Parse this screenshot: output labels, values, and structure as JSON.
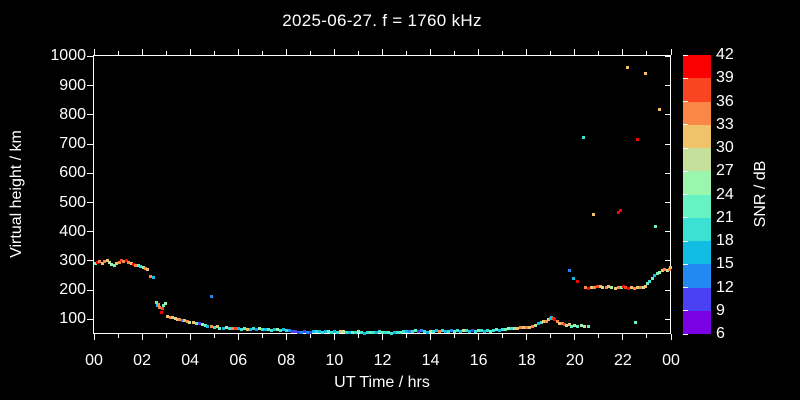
{
  "title": "2025-06-27. f = 1760 kHz",
  "colors": {
    "background": "#000000",
    "foreground": "#ffffff"
  },
  "chart_data": {
    "type": "scatter",
    "title": "2025-06-27. f = 1760 kHz",
    "xlabel": "UT Time / hrs",
    "ylabel": "Virtual height / km",
    "xlim": [
      0,
      24
    ],
    "ylim": [
      50,
      1005
    ],
    "x_major_ticks": [
      0,
      2,
      4,
      6,
      8,
      10,
      12,
      14,
      16,
      18,
      20,
      22,
      24
    ],
    "x_major_labels": [
      "00",
      "02",
      "04",
      "06",
      "08",
      "10",
      "12",
      "14",
      "16",
      "18",
      "20",
      "22",
      "00"
    ],
    "x_minor_step": 1,
    "y_ticks": [
      100,
      200,
      300,
      400,
      500,
      600,
      700,
      800,
      900,
      1000
    ],
    "grid": "off",
    "colorbar": {
      "label": "SNR / dB",
      "min": 6,
      "max": 42,
      "step": 3,
      "tick_labels_top_to_bottom": [
        "42",
        "39",
        "36",
        "33",
        "30",
        "27",
        "24",
        "21",
        "18",
        "15",
        "12",
        "9",
        "6"
      ],
      "colors_bottom_to_top": [
        "#7b00e3",
        "#4c41f2",
        "#2389f2",
        "#12bde3",
        "#3be2d3",
        "#66f2c3",
        "#9af6ac",
        "#c4e09a",
        "#f0c36b",
        "#fa8745",
        "#fa4523",
        "#fa0000"
      ]
    },
    "points_format": [
      "time_hrs",
      "virtual_height_km",
      "snr_db"
    ],
    "points": [
      [
        0.05,
        293,
        22
      ],
      [
        0.12,
        296,
        40
      ],
      [
        0.22,
        299,
        34
      ],
      [
        0.32,
        294,
        31
      ],
      [
        0.42,
        300,
        34
      ],
      [
        0.52,
        303,
        31
      ],
      [
        0.62,
        296,
        28
      ],
      [
        0.72,
        291,
        25
      ],
      [
        0.82,
        287,
        22
      ],
      [
        0.92,
        292,
        31
      ],
      [
        1.02,
        298,
        34
      ],
      [
        1.12,
        302,
        37
      ],
      [
        1.22,
        300,
        34
      ],
      [
        1.32,
        304,
        40
      ],
      [
        1.42,
        298,
        34
      ],
      [
        1.52,
        292,
        31
      ],
      [
        1.62,
        288,
        40
      ],
      [
        1.72,
        285,
        34
      ],
      [
        1.82,
        287,
        22
      ],
      [
        1.92,
        283,
        19
      ],
      [
        2.02,
        281,
        25
      ],
      [
        2.12,
        277,
        34
      ],
      [
        2.22,
        271,
        31
      ],
      [
        2.35,
        250,
        34
      ],
      [
        2.45,
        246,
        16
      ],
      [
        2.58,
        158,
        22
      ],
      [
        2.62,
        150,
        16
      ],
      [
        2.68,
        152,
        34
      ],
      [
        2.72,
        143,
        34
      ],
      [
        2.78,
        127,
        40
      ],
      [
        2.82,
        138,
        37
      ],
      [
        2.88,
        148,
        22
      ],
      [
        2.95,
        155,
        25
      ],
      [
        3.05,
        112,
        31
      ],
      [
        3.15,
        109,
        34
      ],
      [
        3.25,
        107,
        31
      ],
      [
        3.35,
        104,
        28
      ],
      [
        3.45,
        102,
        31
      ],
      [
        3.55,
        100,
        34
      ],
      [
        3.65,
        98,
        13
      ],
      [
        3.75,
        97,
        31
      ],
      [
        3.85,
        95,
        34
      ],
      [
        3.95,
        92,
        28
      ],
      [
        4.1,
        90,
        31
      ],
      [
        4.25,
        87,
        22
      ],
      [
        4.37,
        86,
        10
      ],
      [
        4.5,
        83,
        25
      ],
      [
        4.62,
        80,
        22
      ],
      [
        4.87,
        180,
        13
      ],
      [
        4.72,
        78,
        16
      ],
      [
        4.85,
        76,
        34
      ],
      [
        4.98,
        74,
        19
      ],
      [
        5.1,
        76,
        31
      ],
      [
        5.22,
        72,
        22
      ],
      [
        5.35,
        70,
        16
      ],
      [
        5.48,
        73,
        28
      ],
      [
        5.6,
        71,
        19
      ],
      [
        5.72,
        69,
        34
      ],
      [
        5.85,
        72,
        37
      ],
      [
        5.98,
        70,
        16
      ],
      [
        6.1,
        68,
        19
      ],
      [
        6.22,
        70,
        22
      ],
      [
        6.35,
        68,
        31
      ],
      [
        6.48,
        66,
        16
      ],
      [
        6.6,
        69,
        19
      ],
      [
        6.72,
        67,
        13
      ],
      [
        6.85,
        70,
        25
      ],
      [
        6.98,
        68,
        19
      ],
      [
        7.1,
        66,
        16
      ],
      [
        7.22,
        68,
        22
      ],
      [
        7.35,
        65,
        19
      ],
      [
        7.48,
        67,
        16
      ],
      [
        7.6,
        66,
        25
      ],
      [
        7.72,
        64,
        19
      ],
      [
        7.85,
        67,
        16
      ],
      [
        7.98,
        65,
        19
      ],
      [
        8.1,
        63,
        13
      ],
      [
        8.22,
        61,
        10
      ],
      [
        8.35,
        59,
        10
      ],
      [
        8.48,
        58,
        10
      ],
      [
        8.6,
        57,
        13
      ],
      [
        8.72,
        59,
        10
      ],
      [
        8.85,
        58,
        13
      ],
      [
        8.98,
        57,
        10
      ],
      [
        9.1,
        60,
        16
      ],
      [
        9.22,
        61,
        19
      ],
      [
        9.35,
        59,
        16
      ],
      [
        9.48,
        58,
        19
      ],
      [
        9.6,
        60,
        16
      ],
      [
        9.72,
        59,
        22
      ],
      [
        9.85,
        58,
        19
      ],
      [
        9.98,
        60,
        16
      ],
      [
        10.1,
        58,
        19
      ],
      [
        10.22,
        59,
        31
      ],
      [
        10.35,
        60,
        28
      ],
      [
        10.48,
        57,
        19
      ],
      [
        10.6,
        58,
        16
      ],
      [
        10.72,
        56,
        22
      ],
      [
        10.85,
        58,
        19
      ],
      [
        10.98,
        59,
        25
      ],
      [
        11.1,
        57,
        19
      ],
      [
        11.22,
        55,
        16
      ],
      [
        11.35,
        57,
        19
      ],
      [
        11.48,
        56,
        22
      ],
      [
        11.6,
        58,
        19
      ],
      [
        11.72,
        57,
        16
      ],
      [
        11.85,
        59,
        19
      ],
      [
        11.98,
        57,
        22
      ],
      [
        12.1,
        58,
        19
      ],
      [
        12.22,
        57,
        22
      ],
      [
        12.35,
        55,
        19
      ],
      [
        12.48,
        58,
        16
      ],
      [
        12.6,
        56,
        19
      ],
      [
        12.72,
        58,
        22
      ],
      [
        12.85,
        59,
        19
      ],
      [
        12.98,
        60,
        16
      ],
      [
        13.1,
        61,
        13
      ],
      [
        13.22,
        59,
        19
      ],
      [
        13.35,
        62,
        22
      ],
      [
        13.48,
        60,
        10
      ],
      [
        13.6,
        62,
        13
      ],
      [
        13.72,
        60,
        19
      ],
      [
        13.85,
        58,
        16
      ],
      [
        13.98,
        61,
        28
      ],
      [
        14.1,
        59,
        19
      ],
      [
        14.22,
        62,
        16
      ],
      [
        14.35,
        60,
        34
      ],
      [
        14.48,
        63,
        19
      ],
      [
        14.6,
        61,
        16
      ],
      [
        14.72,
        59,
        19
      ],
      [
        14.85,
        62,
        13
      ],
      [
        14.98,
        60,
        22
      ],
      [
        15.1,
        63,
        19
      ],
      [
        15.22,
        61,
        16
      ],
      [
        15.35,
        64,
        28
      ],
      [
        15.48,
        62,
        19
      ],
      [
        15.6,
        60,
        16
      ],
      [
        15.72,
        63,
        10
      ],
      [
        15.85,
        61,
        19
      ],
      [
        15.98,
        64,
        22
      ],
      [
        16.1,
        62,
        19
      ],
      [
        16.22,
        60,
        16
      ],
      [
        16.35,
        63,
        19
      ],
      [
        16.48,
        61,
        22
      ],
      [
        16.6,
        64,
        19
      ],
      [
        16.72,
        66,
        22
      ],
      [
        16.85,
        65,
        16
      ],
      [
        16.98,
        67,
        19
      ],
      [
        17.1,
        68,
        22
      ],
      [
        17.22,
        70,
        25
      ],
      [
        17.35,
        69,
        19
      ],
      [
        17.48,
        71,
        28
      ],
      [
        17.6,
        72,
        31
      ],
      [
        17.72,
        73,
        34
      ],
      [
        17.85,
        74,
        31
      ],
      [
        17.98,
        73,
        34
      ],
      [
        18.1,
        75,
        31
      ],
      [
        18.22,
        77,
        34
      ],
      [
        18.35,
        80,
        28
      ],
      [
        18.48,
        86,
        16
      ],
      [
        18.58,
        90,
        19
      ],
      [
        18.68,
        95,
        31
      ],
      [
        18.78,
        93,
        34
      ],
      [
        18.88,
        100,
        28
      ],
      [
        18.95,
        105,
        16
      ],
      [
        19.02,
        108,
        16
      ],
      [
        19.08,
        104,
        37
      ],
      [
        19.15,
        100,
        40
      ],
      [
        19.25,
        94,
        34
      ],
      [
        19.35,
        89,
        31
      ],
      [
        19.45,
        86,
        34
      ],
      [
        19.55,
        83,
        37
      ],
      [
        19.65,
        81,
        28
      ],
      [
        19.75,
        84,
        31
      ],
      [
        19.85,
        79,
        22
      ],
      [
        19.98,
        81,
        25
      ],
      [
        20.1,
        77,
        22
      ],
      [
        20.25,
        80,
        25
      ],
      [
        20.4,
        76,
        28
      ],
      [
        20.55,
        78,
        22
      ],
      [
        19.76,
        269,
        13
      ],
      [
        19.93,
        240,
        16
      ],
      [
        20.1,
        232,
        40
      ],
      [
        20.34,
        724,
        19
      ],
      [
        20.42,
        210,
        34
      ],
      [
        20.55,
        207,
        40
      ],
      [
        20.68,
        212,
        31
      ],
      [
        20.8,
        210,
        34
      ],
      [
        20.92,
        214,
        37
      ],
      [
        21.05,
        213,
        31
      ],
      [
        21.15,
        210,
        28
      ],
      [
        21.28,
        212,
        34
      ],
      [
        21.4,
        215,
        31
      ],
      [
        21.52,
        211,
        25
      ],
      [
        21.65,
        208,
        31
      ],
      [
        21.78,
        210,
        34
      ],
      [
        21.9,
        212,
        22
      ],
      [
        22.0,
        214,
        40
      ],
      [
        22.1,
        211,
        37
      ],
      [
        22.2,
        208,
        40
      ],
      [
        22.32,
        211,
        31
      ],
      [
        22.45,
        209,
        34
      ],
      [
        22.58,
        212,
        31
      ],
      [
        22.7,
        210,
        34
      ],
      [
        22.82,
        211,
        28
      ],
      [
        22.92,
        213,
        31
      ],
      [
        23.0,
        224,
        22
      ],
      [
        23.1,
        230,
        19
      ],
      [
        23.2,
        241,
        22
      ],
      [
        23.3,
        253,
        16
      ],
      [
        23.42,
        258,
        22
      ],
      [
        23.52,
        263,
        25
      ],
      [
        23.62,
        268,
        31
      ],
      [
        23.72,
        272,
        34
      ],
      [
        23.82,
        269,
        28
      ],
      [
        23.9,
        274,
        34
      ],
      [
        23.97,
        278,
        31
      ],
      [
        20.76,
        462,
        31
      ],
      [
        21.8,
        468,
        40
      ],
      [
        21.88,
        473,
        40
      ],
      [
        22.16,
        965,
        31
      ],
      [
        22.59,
        718,
        40
      ],
      [
        22.9,
        945,
        31
      ],
      [
        23.35,
        420,
        22
      ],
      [
        23.52,
        820,
        31
      ],
      [
        22.5,
        92,
        22
      ]
    ]
  }
}
